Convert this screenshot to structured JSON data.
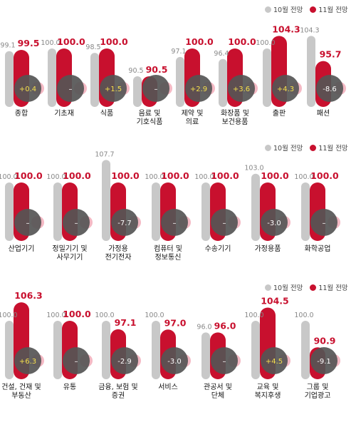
{
  "legend": {
    "prev": "10월 전망",
    "curr": "11월 전망"
  },
  "colors": {
    "prev": "#c8c8c8",
    "curr": "#c8102e",
    "badge": "#555555",
    "badge_pos": "#f4e04d",
    "badge_neg": "#ffffff",
    "pink": "#f4b9c4"
  },
  "chart_data": [
    {
      "type": "bar",
      "categories": [
        "종합",
        "기초재",
        "식품",
        "음료 및\n기호식품",
        "제약 및\n의료",
        "화장품 및\n보건용품",
        "출판",
        "패션"
      ],
      "series": [
        {
          "name": "10월 전망",
          "values": [
            99.1,
            100.0,
            98.5,
            90.5,
            97.1,
            96.4,
            100.0,
            104.3
          ]
        },
        {
          "name": "11월 전망",
          "values": [
            99.5,
            100.0,
            100.0,
            90.5,
            100.0,
            100.0,
            104.3,
            95.7
          ]
        }
      ],
      "prev_labels": [
        "99.1",
        "100.0",
        "98.5",
        "90.5",
        "97.1",
        "96.4",
        "100.0",
        "104.3"
      ],
      "curr_labels": [
        "99.5",
        "100.0",
        "100.0",
        "90.5",
        "100.0",
        "100.0",
        "104.3",
        "95.7"
      ],
      "changes": [
        "+0.4",
        "–",
        "+1.5",
        "–",
        "+2.9",
        "+3.6",
        "+4.3",
        "-8.6"
      ]
    },
    {
      "type": "bar",
      "categories": [
        "산업기기",
        "정밀기기 및\n사무기기",
        "가정용\n전기전자",
        "컴퓨터 및\n정보통신",
        "수송기기",
        "가정용품",
        "화학공업"
      ],
      "series": [
        {
          "name": "10월 전망",
          "values": [
            100.0,
            100.0,
            107.7,
            100.0,
            100.0,
            103.0,
            100.0
          ]
        },
        {
          "name": "11월 전망",
          "values": [
            100.0,
            100.0,
            100.0,
            100.0,
            100.0,
            100.0,
            100.0
          ]
        }
      ],
      "prev_labels": [
        "100.0",
        "100.0",
        "107.7",
        "100.0",
        "100.0",
        "103.0",
        "100.0"
      ],
      "curr_labels": [
        "100.0",
        "100.0",
        "100.0",
        "100.0",
        "100.0",
        "100.0",
        "100.0"
      ],
      "changes": [
        "–",
        "–",
        "-7.7",
        "–",
        "–",
        "-3.0",
        "–"
      ]
    },
    {
      "type": "bar",
      "categories": [
        "건설, 건재 및\n부동산",
        "유통",
        "금융, 보험 및\n증권",
        "서비스",
        "관공서 및\n단체",
        "교육 및\n복지후생",
        "그룹 및\n기업광고"
      ],
      "series": [
        {
          "name": "10월 전망",
          "values": [
            100.0,
            100.0,
            100.0,
            100.0,
            96.0,
            100.0,
            100.0
          ]
        },
        {
          "name": "11월 전망",
          "values": [
            106.3,
            100.0,
            97.1,
            97.0,
            96.0,
            104.5,
            90.9
          ]
        }
      ],
      "prev_labels": [
        "100.0",
        "100.0",
        "100.0",
        "100.0",
        "96.0",
        "100.0",
        "100.0"
      ],
      "curr_labels": [
        "106.3",
        "100.0",
        "97.1",
        "97.0",
        "96.0",
        "104.5",
        "90.9"
      ],
      "changes": [
        "+6.3",
        "–",
        "-2.9",
        "-3.0",
        "–",
        "+4.5",
        "-9.1"
      ]
    }
  ]
}
